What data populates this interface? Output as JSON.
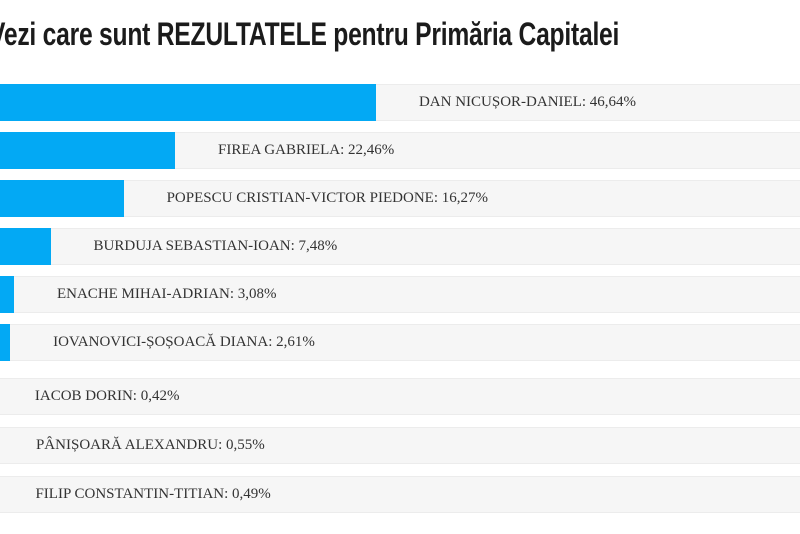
{
  "title": "Vezi care sunt REZULTATELE pentru Primăria Capitalei",
  "colors": {
    "bar": "#03a9f4",
    "row_background": "#f6f6f6",
    "row_border": "#ececec",
    "title_text": "#1b1b1b",
    "label_text": "#333333"
  },
  "results": [
    {
      "name": "DAN NICUȘOR-DANIEL",
      "percent": 46.64,
      "percent_label": "46,64%",
      "label": "DAN NICUȘOR-DANIEL: 46,64%"
    },
    {
      "name": "FIREA GABRIELA",
      "percent": 22.46,
      "percent_label": "22,46%",
      "label": "FIREA GABRIELA: 22,46%"
    },
    {
      "name": "POPESCU CRISTIAN-VICTOR PIEDONE",
      "percent": 16.27,
      "percent_label": "16,27%",
      "label": "POPESCU CRISTIAN-VICTOR PIEDONE: 16,27%"
    },
    {
      "name": "BURDUJA SEBASTIAN-IOAN",
      "percent": 7.48,
      "percent_label": "7,48%",
      "label": "BURDUJA SEBASTIAN-IOAN: 7,48%"
    },
    {
      "name": "ENACHE MIHAI-ADRIAN",
      "percent": 3.08,
      "percent_label": "3,08%",
      "label": "ENACHE MIHAI-ADRIAN: 3,08%"
    },
    {
      "name": "IOVANOVICI-ȘOȘOACĂ DIANA",
      "percent": 2.61,
      "percent_label": "2,61%",
      "label": "IOVANOVICI-ȘOȘOACĂ DIANA: 2,61%"
    },
    {
      "name": "IACOB DORIN",
      "percent": 0.42,
      "percent_label": "0,42%",
      "label": "IACOB DORIN: 0,42%"
    },
    {
      "name": "PÂNIȘOARĂ ALEXANDRU",
      "percent": 0.55,
      "percent_label": "0,55%",
      "label": "PÂNIȘOARĂ ALEXANDRU: 0,55%"
    },
    {
      "name": "FILIP CONSTANTIN-TITIAN",
      "percent": 0.49,
      "percent_label": "0,49%",
      "label": "FILIP CONSTANTIN-TITIAN: 0,49%"
    }
  ],
  "chart_data": {
    "type": "bar",
    "orientation": "horizontal",
    "title": "Vezi care sunt REZULTATELE pentru Primăria Capitalei",
    "categories": [
      "DAN NICUȘOR-DANIEL",
      "FIREA GABRIELA",
      "POPESCU CRISTIAN-VICTOR PIEDONE",
      "BURDUJA SEBASTIAN-IOAN",
      "ENACHE MIHAI-ADRIAN",
      "IOVANOVICI-ȘOȘOACĂ DIANA",
      "IACOB DORIN",
      "PÂNIȘOARĂ ALEXANDRU",
      "FILIP CONSTANTIN-TITIAN"
    ],
    "values": [
      46.64,
      22.46,
      16.27,
      7.48,
      3.08,
      2.61,
      0.42,
      0.55,
      0.49
    ],
    "value_suffix": "%",
    "decimal_separator": ",",
    "xlabel": "",
    "ylabel": "",
    "xlim": [
      0,
      100
    ],
    "grid": false,
    "legend": false,
    "data_labels": "category and value shown as text to the right of each bar",
    "bar_color": "#03a9f4",
    "note": "left edge of chart is cropped off-screen; bars are clipped at image left edge"
  }
}
